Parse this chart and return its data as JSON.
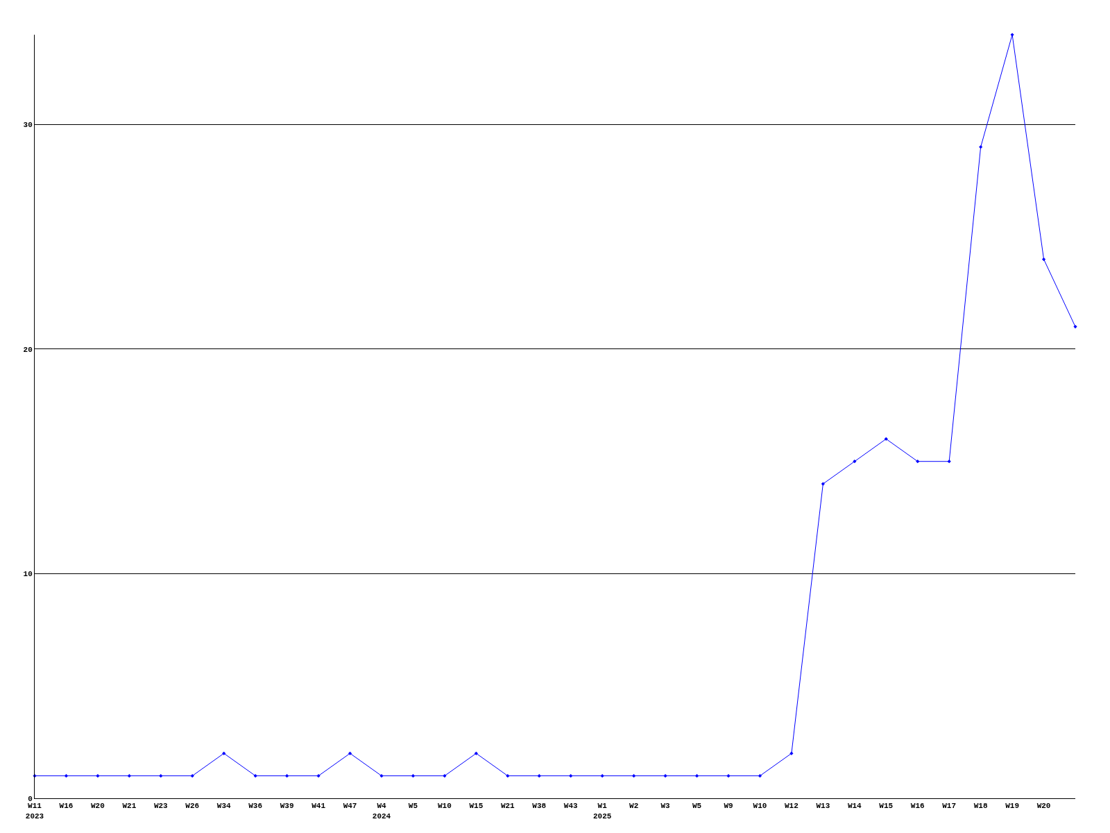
{
  "chart_data": {
    "type": "line",
    "categories": [
      "W11\n2023",
      "W16",
      "W20",
      "W21",
      "W23",
      "W26",
      "W34",
      "W36",
      "W39",
      "W41",
      "W47",
      "W4\n2024",
      "W5",
      "W10",
      "W15",
      "W21",
      "W38",
      "W43",
      "W1\n2025",
      "W2",
      "W3",
      "W5",
      "W9",
      "W10",
      "W12",
      "W13",
      "W14",
      "W15",
      "W16",
      "W17",
      "W18",
      "W19",
      "W20",
      null
    ],
    "series": [
      {
        "color": "#0000ff",
        "values": [
          1,
          1,
          1,
          1,
          1,
          1,
          2,
          1,
          1,
          1,
          2,
          1,
          1,
          1,
          2,
          1,
          1,
          1,
          1,
          1,
          1,
          1,
          1,
          1,
          2,
          14,
          15,
          16,
          15,
          15,
          29,
          34,
          24,
          21
        ]
      }
    ],
    "ylim": [
      0,
      34
    ],
    "yticks": [
      0,
      10,
      20,
      30
    ],
    "grid": "y",
    "marker": "diamond",
    "line_style": "solid"
  }
}
